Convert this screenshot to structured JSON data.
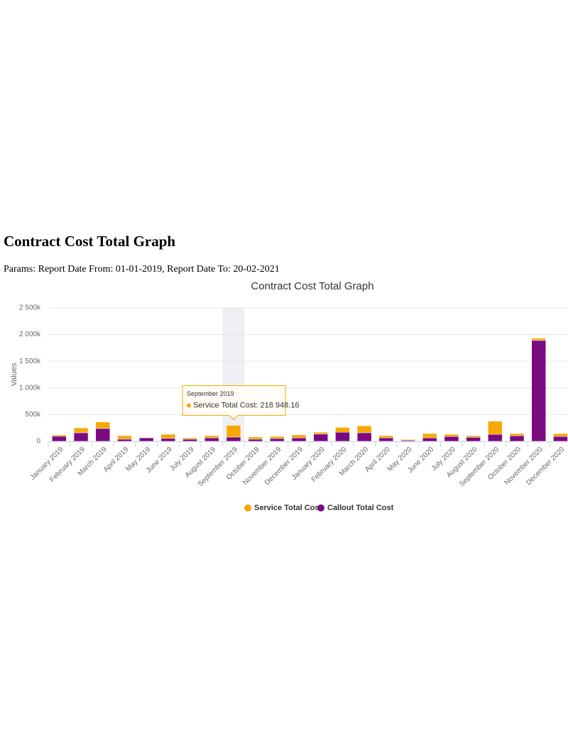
{
  "header": {
    "title": "Contract Cost Total Graph",
    "params": "Params: Report Date From: 01-01-2019, Report Date To: 20-02-2021"
  },
  "chart_data": {
    "type": "bar",
    "stacked": true,
    "title": "Contract Cost Total Graph",
    "y_label": "Values",
    "categories": [
      "January 2019",
      "February 2019",
      "March 2019",
      "April 2019",
      "May 2019",
      "June 2019",
      "July 2019",
      "August 2019",
      "September 2019",
      "October 2019",
      "November 2019",
      "December 2019",
      "January 2020",
      "February 2020",
      "March 2020",
      "April 2020",
      "May 2020",
      "June 2020",
      "July 2020",
      "August 2020",
      "September 2020",
      "October 2020",
      "November 2020",
      "December 2020"
    ],
    "series": [
      {
        "name": "Service Total Cost",
        "color": "#f7a800",
        "values": [
          25000,
          90000,
          120000,
          65000,
          5000,
          75000,
          25000,
          40000,
          218948.16,
          40000,
          40000,
          55000,
          35000,
          90000,
          130000,
          40000,
          15000,
          80000,
          40000,
          30000,
          245000,
          40000,
          40000,
          55000
        ]
      },
      {
        "name": "Callout Total Cost",
        "color": "#7b0a82",
        "values": [
          95000,
          160000,
          240000,
          40000,
          65000,
          55000,
          40000,
          65000,
          80000,
          40000,
          50000,
          65000,
          135000,
          170000,
          160000,
          65000,
          20000,
          65000,
          90000,
          75000,
          130000,
          105000,
          1890000,
          90000
        ]
      }
    ],
    "ylim": [
      0,
      2500000
    ],
    "yticks": [
      0,
      {
        "value": 500000,
        "label": "500k"
      },
      {
        "value": 1000000,
        "label": "1 000k"
      },
      {
        "value": 1500000,
        "label": "1 500k"
      },
      {
        "value": 2000000,
        "label": "2 000k"
      },
      {
        "value": 2500000,
        "label": "2 500k"
      }
    ],
    "grid": true,
    "legend": "bottom",
    "tooltip": {
      "title": "September 2019",
      "text": "Service Total Cost: 218 948.16"
    }
  }
}
